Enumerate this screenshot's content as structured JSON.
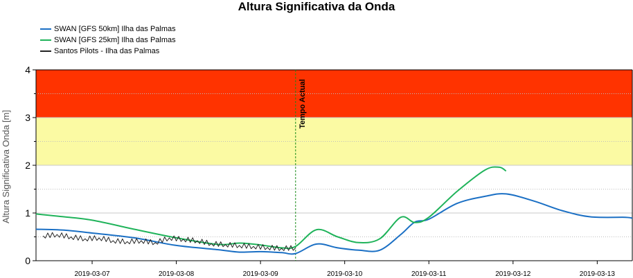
{
  "chart_data": {
    "type": "line",
    "title": "Altura Significativa da Onda",
    "xlabel": "",
    "ylabel": "Altura Significativa Onda [m]",
    "xlim": [
      "2019-03-06 08:00",
      "2019-03-13 10:00"
    ],
    "ylim": [
      0,
      4
    ],
    "yticks": [
      0,
      1,
      2,
      3,
      4
    ],
    "xticks": [
      "2019-03-07",
      "2019-03-08",
      "2019-03-09",
      "2019-03-10",
      "2019-03-11",
      "2019-03-12",
      "2019-03-13"
    ],
    "grid": true,
    "legend_position": "top-left",
    "bands": [
      {
        "from": 3,
        "to": 4,
        "color": "#ff3300"
      },
      {
        "from": 2,
        "to": 3,
        "color": "#fbfaa3"
      }
    ],
    "vline": {
      "x": "2019-03-09 10:00",
      "label": "Tempo Actual",
      "color": "#1a8c1a"
    },
    "series": [
      {
        "name": "SWAN [GFS 50km] Ilha das Palmas",
        "color": "#1a6fc4",
        "x": [
          "2019-03-06 08:00",
          "2019-03-06 16:00",
          "2019-03-07 00:00",
          "2019-03-07 12:00",
          "2019-03-08 00:00",
          "2019-03-08 12:00",
          "2019-03-08 18:00",
          "2019-03-09 00:00",
          "2019-03-09 06:00",
          "2019-03-09 10:00",
          "2019-03-09 16:00",
          "2019-03-09 22:00",
          "2019-03-10 04:00",
          "2019-03-10 10:00",
          "2019-03-10 16:00",
          "2019-03-10 20:00",
          "2019-03-11 00:00",
          "2019-03-11 08:00",
          "2019-03-11 16:00",
          "2019-03-11 22:00",
          "2019-03-12 06:00",
          "2019-03-12 14:00",
          "2019-03-12 22:00",
          "2019-03-13 08:00",
          "2019-03-13 10:00"
        ],
        "y": [
          0.66,
          0.64,
          0.58,
          0.48,
          0.32,
          0.23,
          0.18,
          0.19,
          0.17,
          0.15,
          0.35,
          0.27,
          0.22,
          0.22,
          0.55,
          0.81,
          0.87,
          1.2,
          1.35,
          1.4,
          1.25,
          1.05,
          0.92,
          0.91,
          0.89
        ]
      },
      {
        "name": "SWAN [GFS 25km] Ilha das Palmas",
        "color": "#1fb35a",
        "x": [
          "2019-03-06 08:00",
          "2019-03-06 16:00",
          "2019-03-07 00:00",
          "2019-03-07 12:00",
          "2019-03-08 00:00",
          "2019-03-08 12:00",
          "2019-03-08 18:00",
          "2019-03-09 00:00",
          "2019-03-09 06:00",
          "2019-03-09 10:00",
          "2019-03-09 16:00",
          "2019-03-09 22:00",
          "2019-03-10 04:00",
          "2019-03-10 10:00",
          "2019-03-10 16:00",
          "2019-03-10 20:00",
          "2019-03-11 00:00",
          "2019-03-11 08:00",
          "2019-03-11 16:00",
          "2019-03-11 20:00",
          "2019-03-11 22:00"
        ],
        "y": [
          0.98,
          0.92,
          0.85,
          0.66,
          0.48,
          0.34,
          0.37,
          0.33,
          0.27,
          0.3,
          0.65,
          0.5,
          0.38,
          0.46,
          0.91,
          0.8,
          0.91,
          1.45,
          1.9,
          1.96,
          1.88
        ]
      },
      {
        "name": "Santos Pilots - Ilha das Palmas",
        "color": "#222222",
        "x": [
          "2019-03-06 10:00",
          "2019-03-06 14:00",
          "2019-03-06 18:00",
          "2019-03-06 22:00",
          "2019-03-07 02:00",
          "2019-03-07 06:00",
          "2019-03-07 10:00",
          "2019-03-07 14:00",
          "2019-03-07 18:00",
          "2019-03-07 22:00",
          "2019-03-08 02:00",
          "2019-03-08 06:00",
          "2019-03-08 10:00",
          "2019-03-08 14:00",
          "2019-03-08 18:00",
          "2019-03-08 22:00",
          "2019-03-09 02:00",
          "2019-03-09 06:00",
          "2019-03-09 10:00"
        ],
        "y": [
          0.52,
          0.55,
          0.5,
          0.46,
          0.48,
          0.42,
          0.4,
          0.42,
          0.38,
          0.48,
          0.45,
          0.42,
          0.36,
          0.34,
          0.32,
          0.3,
          0.28,
          0.26,
          0.27
        ]
      }
    ]
  }
}
